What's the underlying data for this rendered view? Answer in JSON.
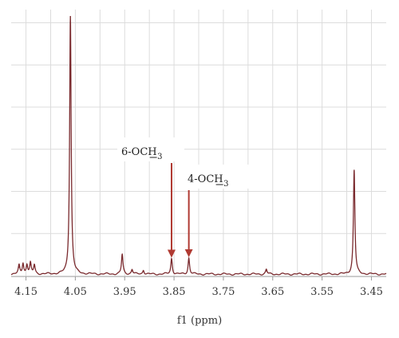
{
  "chart_data": {
    "type": "line",
    "title": "",
    "xlabel": "f1 (ppm)",
    "ylabel": "",
    "x_reversed": true,
    "xlim": [
      4.18,
      3.42
    ],
    "ylim": [
      0,
      100
    ],
    "grid": true,
    "x_ticks": [
      4.15,
      4.05,
      3.95,
      3.85,
      3.75,
      3.65,
      3.55,
      3.45
    ],
    "x_tick_labels": [
      "4.15",
      "4.05",
      "3.95",
      "3.85",
      "3.75",
      "3.65",
      "3.55",
      "3.45"
    ],
    "baseline": 0.6,
    "peaks": [
      {
        "x": 4.164,
        "y": 3.2
      },
      {
        "x": 4.156,
        "y": 4.0
      },
      {
        "x": 4.148,
        "y": 3.6
      },
      {
        "x": 4.141,
        "y": 4.1
      },
      {
        "x": 4.133,
        "y": 3.4
      },
      {
        "x": 4.06,
        "y": 99.0
      },
      {
        "x": 3.955,
        "y": 7.5
      },
      {
        "x": 3.935,
        "y": 1.8
      },
      {
        "x": 3.912,
        "y": 1.6
      },
      {
        "x": 3.855,
        "y": 6.0
      },
      {
        "x": 3.82,
        "y": 6.2
      },
      {
        "x": 3.663,
        "y": 1.8
      },
      {
        "x": 3.485,
        "y": 40.0
      }
    ],
    "annotations": [
      {
        "label": "6-OCH",
        "subscript": "3",
        "x": 3.855,
        "color": "#b03a32"
      },
      {
        "label": "4-OCH",
        "subscript": "3",
        "x": 3.82,
        "color": "#b03a32"
      }
    ],
    "line_color": "#7a2a2e"
  }
}
